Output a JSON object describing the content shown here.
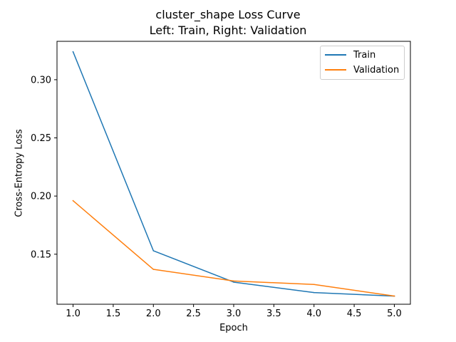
{
  "chart_data": {
    "type": "line",
    "title": "cluster_shape Loss Curve",
    "subtitle": "Left: Train, Right: Validation",
    "xlabel": "Epoch",
    "ylabel": "Cross-Entropy Loss",
    "xlim": [
      0.8,
      5.2
    ],
    "ylim": [
      0.107,
      0.333
    ],
    "x_ticks": [
      1.0,
      1.5,
      2.0,
      2.5,
      3.0,
      3.5,
      4.0,
      4.5,
      5.0
    ],
    "x_tick_labels": [
      "1.0",
      "1.5",
      "2.0",
      "2.5",
      "3.0",
      "3.5",
      "4.0",
      "4.5",
      "5.0"
    ],
    "y_ticks": [
      0.15,
      0.2,
      0.25,
      0.3
    ],
    "y_tick_labels": [
      "0.15",
      "0.20",
      "0.25",
      "0.30"
    ],
    "grid": false,
    "legend_position": "top-right",
    "x": [
      1,
      2,
      3,
      4,
      5
    ],
    "series": [
      {
        "name": "Train",
        "color": "#1f77b4",
        "values": [
          0.324,
          0.153,
          0.126,
          0.117,
          0.114
        ]
      },
      {
        "name": "Validation",
        "color": "#ff7f0e",
        "values": [
          0.196,
          0.137,
          0.127,
          0.124,
          0.114
        ]
      }
    ]
  }
}
